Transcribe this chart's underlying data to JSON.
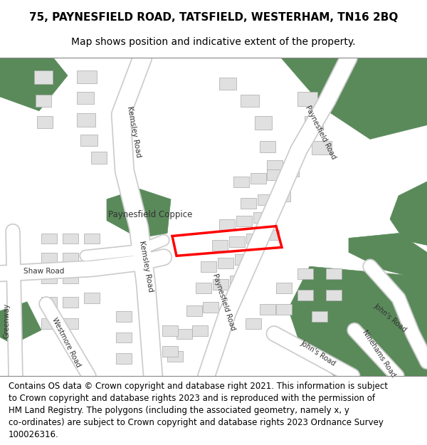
{
  "title_line1": "75, PAYNESFIELD ROAD, TATSFIELD, WESTERHAM, TN16 2BQ",
  "title_line2": "Map shows position and indicative extent of the property.",
  "footer_text": "Contains OS data © Crown copyright and database right 2021. This information is subject\nto Crown copyright and database rights 2023 and is reproduced with the permission of\nHM Land Registry. The polygons (including the associated geometry, namely x, y\nco-ordinates) are subject to Crown copyright and database rights 2023 Ordnance Survey\n100026316.",
  "map_bg": "#f0f0eb",
  "road_color": "#ffffff",
  "road_outline": "#cccccc",
  "green_color": "#5a8a5a",
  "building_color": "#e0e0e0",
  "building_outline": "#aaaaaa",
  "red_outline": "#ff0000",
  "title_fontsize": 11,
  "subtitle_fontsize": 10,
  "footer_fontsize": 8.5,
  "label_fontsize": 8
}
